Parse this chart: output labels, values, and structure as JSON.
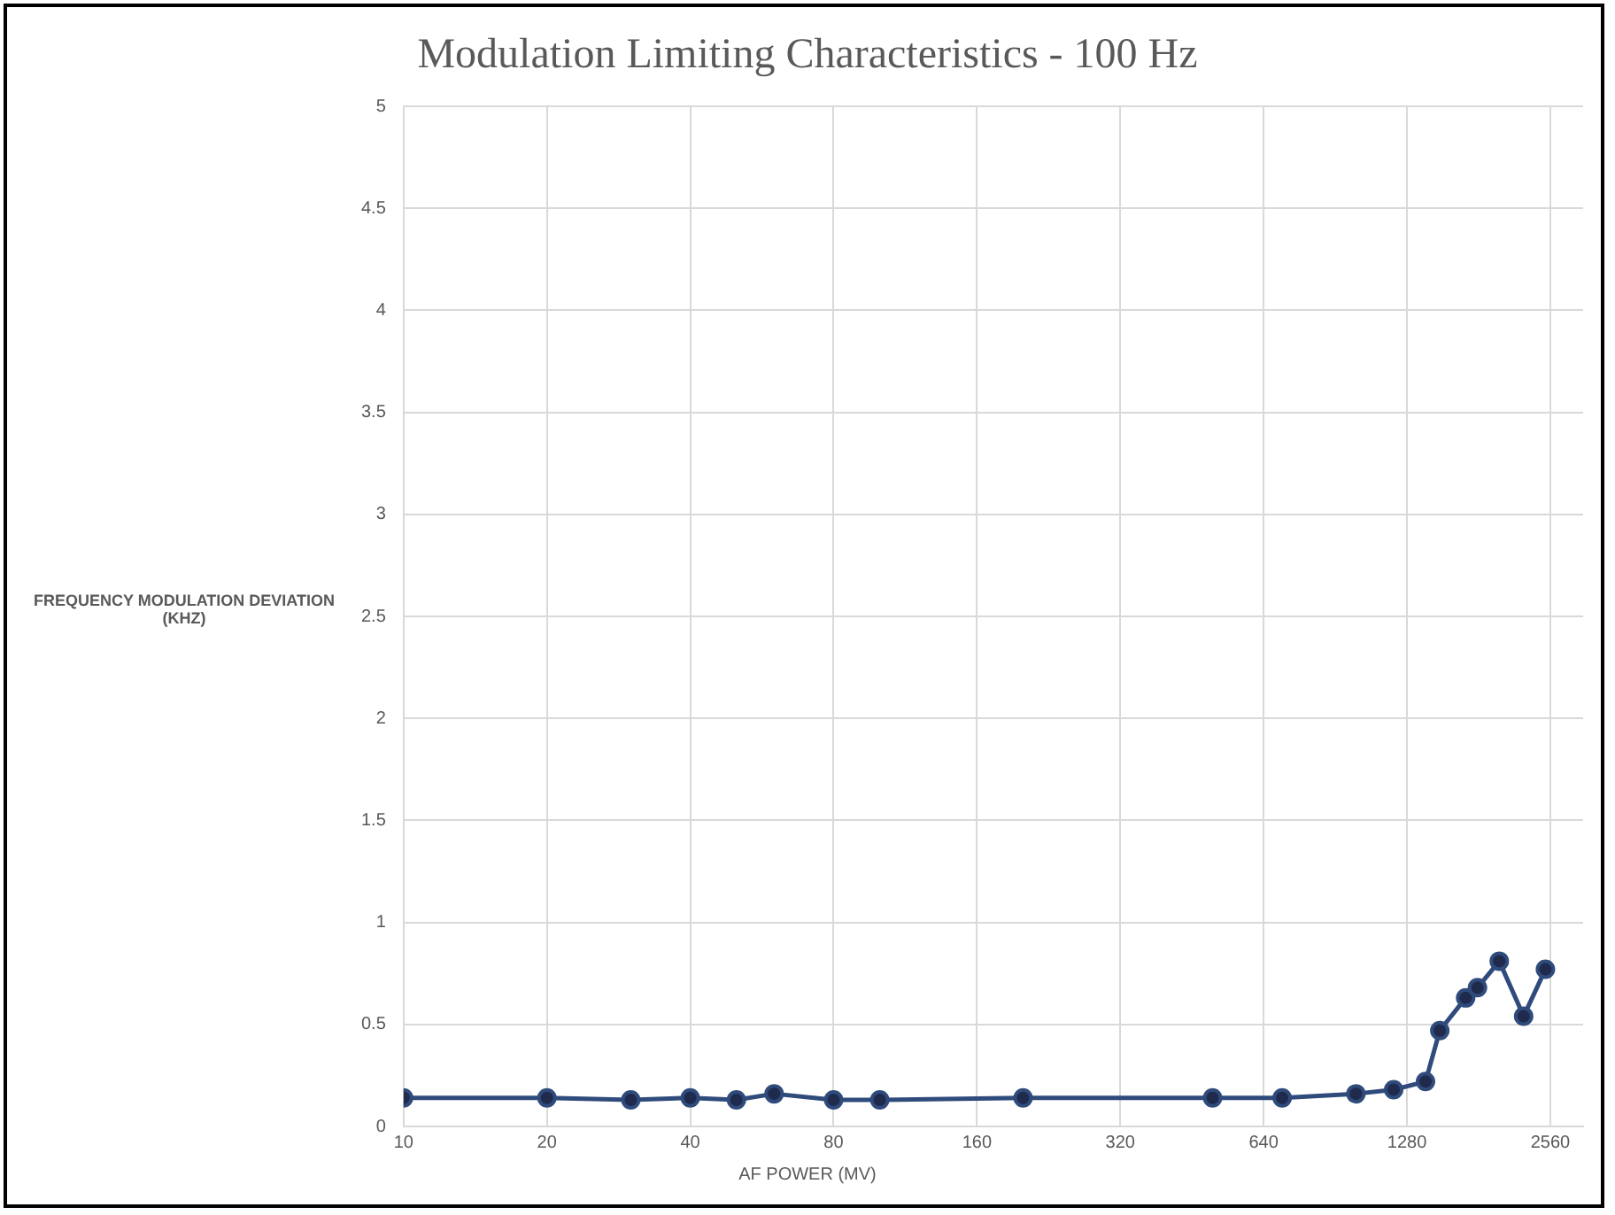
{
  "chart_data": {
    "type": "line",
    "title": "Modulation Limiting Characteristics - 100 Hz",
    "xlabel": "AF POWER (MV)",
    "ylabel": "FREQUENCY MODULATION DEVIATION (KHZ)",
    "x": [
      10,
      20,
      30,
      40,
      50,
      60,
      80,
      100,
      200,
      500,
      700,
      1000,
      1200,
      1400,
      1500,
      1700,
      1800,
      2000,
      2250,
      2500
    ],
    "series": [
      {
        "color": "#2f4b7c",
        "values": [
          0.14,
          0.14,
          0.13,
          0.14,
          0.13,
          0.16,
          0.13,
          0.13,
          0.14,
          0.14,
          0.14,
          0.16,
          0.18,
          0.22,
          0.47,
          0.63,
          0.68,
          0.81,
          0.54,
          0.77
        ]
      }
    ],
    "log": "x",
    "xlim": [
      10,
      3000
    ],
    "xticks": [
      10,
      20,
      40,
      80,
      160,
      320,
      640,
      1280,
      2560
    ],
    "ylim": [
      0,
      5
    ],
    "yticks": [
      0,
      0.5,
      1,
      1.5,
      2,
      2.5,
      3,
      3.5,
      4,
      4.5,
      5
    ],
    "grid": true,
    "legend": false,
    "marker": "circle",
    "line_style": "solid"
  }
}
